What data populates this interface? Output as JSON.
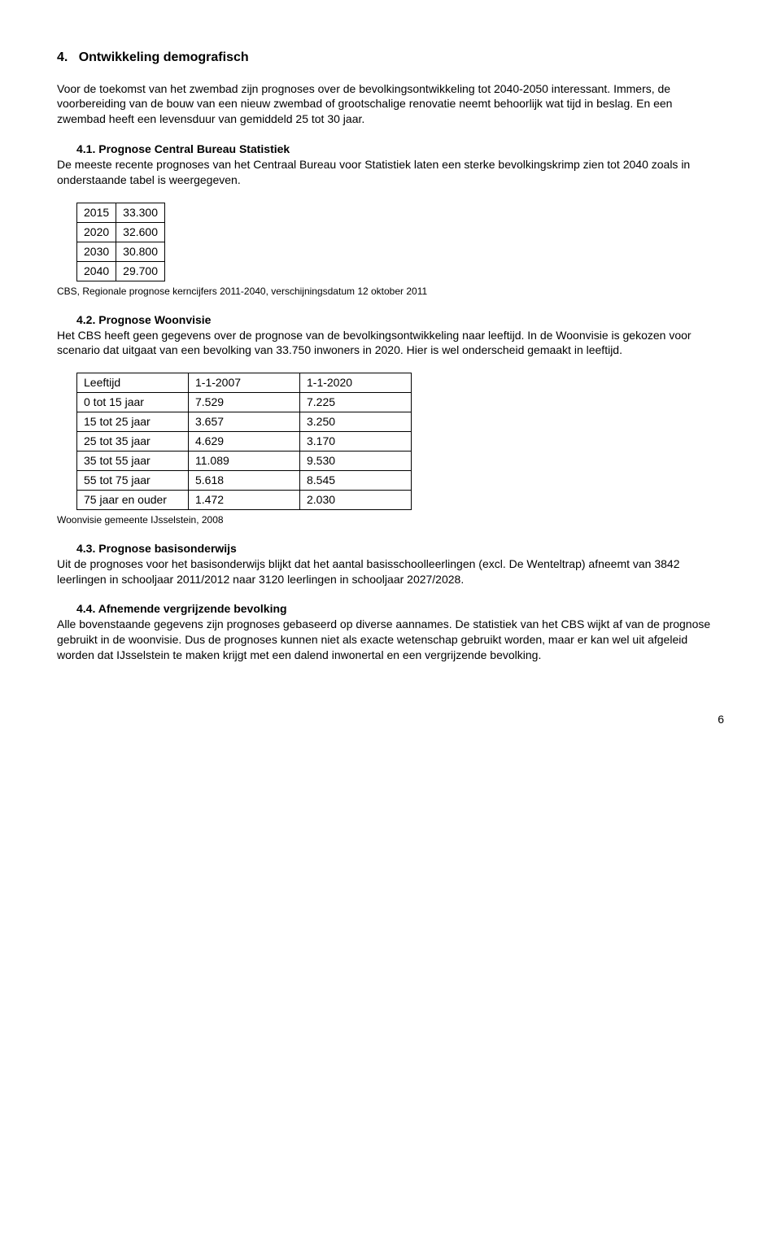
{
  "heading": {
    "number": "4.",
    "title": "Ontwikkeling demografisch"
  },
  "intro_p1": "Voor de toekomst van het zwembad zijn prognoses over de bevolkingsontwikkeling tot 2040-2050 interessant. Immers, de voorbereiding van de bouw van een nieuw zwembad of grootschalige renovatie neemt behoorlijk wat tijd in beslag. En een zwembad heeft een levensduur van gemiddeld 25 tot 30 jaar.",
  "sec41": {
    "label": "4.1. Prognose Central Bureau Statistiek",
    "body": "De meeste recente prognoses van het Centraal Bureau voor Statistiek laten een sterke bevolkingskrimp zien tot 2040 zoals in onderstaande tabel is weergegeven.",
    "rows": [
      [
        "2015",
        "33.300"
      ],
      [
        "2020",
        "32.600"
      ],
      [
        "2030",
        "30.800"
      ],
      [
        "2040",
        "29.700"
      ]
    ],
    "caption": "CBS, Regionale prognose kerncijfers 2011-2040, verschijningsdatum 12 oktober 2011"
  },
  "sec42": {
    "label": "4.2. Prognose Woonvisie",
    "body": "Het CBS heeft geen gegevens over de prognose van de bevolkingsontwikkeling naar leeftijd. In de Woonvisie is gekozen voor scenario dat uitgaat van een bevolking van 33.750 inwoners in 2020. Hier is wel onderscheid gemaakt in leeftijd.",
    "header": [
      "Leeftijd",
      "1-1-2007",
      "1-1-2020"
    ],
    "rows": [
      [
        "0 tot 15 jaar",
        "7.529",
        "7.225"
      ],
      [
        "15 tot 25 jaar",
        "3.657",
        "3.250"
      ],
      [
        "25 tot 35 jaar",
        "4.629",
        "3.170"
      ],
      [
        "35 tot 55 jaar",
        "11.089",
        "9.530"
      ],
      [
        "55 tot 75 jaar",
        "5.618",
        "8.545"
      ],
      [
        "75 jaar en ouder",
        "1.472",
        "2.030"
      ]
    ],
    "caption": "Woonvisie gemeente IJsselstein, 2008"
  },
  "sec43": {
    "label": "4.3. Prognose basisonderwijs",
    "body": "Uit de prognoses voor het basisonderwijs blijkt dat het aantal basisschoolleerlingen (excl. De Wenteltrap) afneemt van 3842 leerlingen in schooljaar 2011/2012 naar 3120 leerlingen in schooljaar 2027/2028."
  },
  "sec44": {
    "label": "4.4. Afnemende vergrijzende bevolking",
    "body": "Alle bovenstaande gegevens zijn prognoses gebaseerd op diverse aannames. De statistiek van het CBS wijkt af van de prognose gebruikt in de woonvisie. Dus de prognoses kunnen niet als exacte wetenschap gebruikt worden, maar er kan wel uit afgeleid worden dat IJsselstein te maken krijgt met een dalend inwonertal en een vergrijzende bevolking."
  },
  "page_number": "6"
}
